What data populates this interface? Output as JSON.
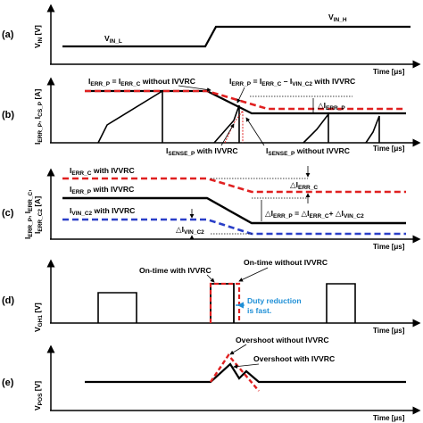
{
  "panels": {
    "a": {
      "tag": "(a)",
      "ylabel": "V",
      "ylabel_sub": "IN",
      "ylabel_unit": " [V]",
      "level_low_main": "V",
      "level_low_sub": "IN_L",
      "level_high_main": "V",
      "level_high_sub": "IN_H",
      "time_label": "Time [μs]"
    },
    "b": {
      "tag": "(b)",
      "ylabel": "I",
      "ylabel_sub1": "ERR_P",
      "ylabel_mid": ", I",
      "ylabel_sub2": "CS_P",
      "ylabel_unit": " [A]",
      "eq1_a": "I",
      "eq1_a_sub": "ERR_P",
      "eq1_b": " = I",
      "eq1_b_sub": "ERR_C",
      "eq1_c": " without IVVRC",
      "eq2_a": "I",
      "eq2_a_sub": "ERR_P",
      "eq2_b": " = I",
      "eq2_b_sub": "ERR_C",
      "eq2_c": " – I",
      "eq2_c_sub": "VIN_C2",
      "eq2_d": " with IVVRC",
      "delta_main": "△I",
      "delta_sub": "ERR_P",
      "sense1_main": "I",
      "sense1_sub": "SENSE_P",
      "sense1_tail": " with IVVRC",
      "sense2_main": "I",
      "sense2_sub": "SENSE_P",
      "sense2_tail": " without IVVRC",
      "time_label": "Time [μs]"
    },
    "c": {
      "tag": "(c)",
      "ylabel_l1": "I",
      "ylabel_l1_sub": "ERR_P",
      "ylabel_l1_mid": ", I",
      "ylabel_l1_sub2": "ERR_C",
      "ylabel_l1_end": ",",
      "ylabel_l2": "I",
      "ylabel_l2_sub": "ERR_C2",
      "ylabel_l2_unit": " [A]",
      "l_errc_main": "I",
      "l_errc_sub": "ERR_C",
      "l_errc_tail": " with IVVRC",
      "l_errp_main": "I",
      "l_errp_sub": "ERR_P",
      "l_errp_tail": " with IVVRC",
      "l_vin_main": "I",
      "l_vin_sub": "VIN_C2",
      "l_vin_tail": " with IVVRC",
      "d_errc_main": "△I",
      "d_errc_sub": "ERR_C",
      "d_vin_main": "△I",
      "d_vin_sub": "VIN_C2",
      "eq_a": "△I",
      "eq_a_sub": "ERR_P",
      "eq_b": " = △I",
      "eq_b_sub": "ERR_C",
      "eq_c": "+ △I",
      "eq_c_sub": "VIN_C2",
      "time_label": "Time [μs]"
    },
    "d": {
      "tag": "(d)",
      "ylabel": "V",
      "ylabel_sub": "GH1",
      "ylabel_unit": " [V]",
      "ontime_with": "On-time with IVVRC",
      "ontime_without": "On-time without IVVRC",
      "duty_line1": "Duty reduction",
      "duty_line2": "is fast.",
      "time_label": "Time [μs]"
    },
    "e": {
      "tag": "(e)",
      "ylabel": "V",
      "ylabel_sub": "POS",
      "ylabel_unit": " [V]",
      "overshoot_without": "Overshoot without IVVRC",
      "overshoot_with": "Overshoot with IVVRC",
      "time_label": "Time [μs]"
    }
  },
  "colors": {
    "with_ivvrc": "#000000",
    "without_ivvrc": "#e02020",
    "vin_c2": "#2a3fc8",
    "duty_note": "#1e8fd6"
  }
}
